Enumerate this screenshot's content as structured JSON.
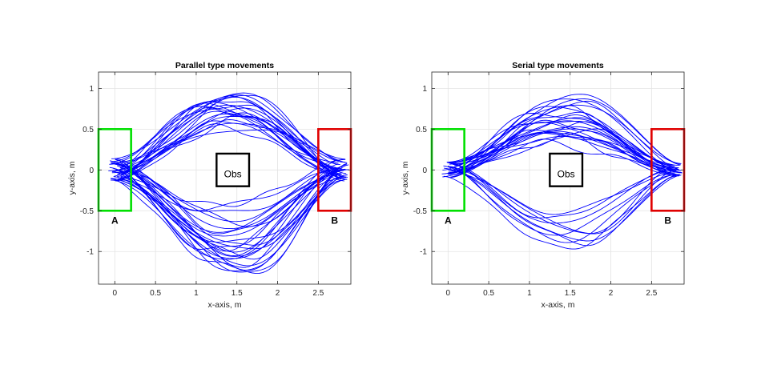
{
  "chart_data": [
    {
      "type": "line",
      "title": "Parallel type movements",
      "xlabel": "x-axis, m",
      "ylabel": "y-axis, m",
      "xlim": [
        -0.2,
        2.9
      ],
      "ylim": [
        -1.4,
        1.2
      ],
      "xticks": [
        0,
        0.5,
        1,
        1.5,
        2,
        2.5
      ],
      "xtick_labels": [
        "0",
        "0.5",
        "1",
        "1.5",
        "2",
        "2.5"
      ],
      "yticks": [
        -1,
        -0.5,
        0,
        0.5,
        1
      ],
      "ytick_labels": [
        "-1",
        "-0.5",
        "0",
        "0.5",
        "1"
      ],
      "grid": true,
      "line_color": "#0000ff",
      "regions": [
        {
          "label": "A",
          "x": [
            -0.2,
            0.2
          ],
          "y": [
            -0.5,
            0.5
          ],
          "color": "#00e000",
          "label_pos": [
            0,
            -0.62
          ]
        },
        {
          "label": "B",
          "x": [
            2.5,
            2.9
          ],
          "y": [
            -0.5,
            0.5
          ],
          "color": "#e00000",
          "label_pos": [
            2.7,
            -0.62
          ]
        },
        {
          "label": "Obs",
          "x": [
            1.25,
            1.65
          ],
          "y": [
            -0.2,
            0.2
          ],
          "color": "#000000",
          "label_pos": [
            1.45,
            -0.05
          ]
        }
      ],
      "trajectory_families": [
        {
          "count": 22,
          "mid_y_range": [
            0.45,
            1.02
          ],
          "start_spread": 0.14,
          "end_spread": 0.14,
          "peak_x_range": [
            1.1,
            1.75
          ]
        },
        {
          "count": 26,
          "mid_y_range": [
            -1.3,
            -0.5
          ],
          "start_spread": 0.14,
          "end_spread": 0.14,
          "peak_x_range": [
            1.1,
            1.75
          ]
        }
      ]
    },
    {
      "type": "line",
      "title": "Serial type movements",
      "xlabel": "x-axis, m",
      "ylabel": "y-axis, m",
      "xlim": [
        -0.2,
        2.9
      ],
      "ylim": [
        -1.4,
        1.2
      ],
      "xticks": [
        0,
        0.5,
        1,
        1.5,
        2,
        2.5
      ],
      "xtick_labels": [
        "0",
        "0.5",
        "1",
        "1.5",
        "2",
        "2.5"
      ],
      "yticks": [
        -1,
        -0.5,
        0,
        0.5,
        1
      ],
      "ytick_labels": [
        "-1",
        "-0.5",
        "0",
        "0.5",
        "1"
      ],
      "grid": true,
      "line_color": "#0000ff",
      "regions": [
        {
          "label": "A",
          "x": [
            -0.2,
            0.2
          ],
          "y": [
            -0.5,
            0.5
          ],
          "color": "#00e000",
          "label_pos": [
            0,
            -0.62
          ]
        },
        {
          "label": "B",
          "x": [
            2.5,
            2.9
          ],
          "y": [
            -0.5,
            0.5
          ],
          "color": "#e00000",
          "label_pos": [
            2.7,
            -0.62
          ]
        },
        {
          "label": "Obs",
          "x": [
            1.25,
            1.65
          ],
          "y": [
            -0.2,
            0.2
          ],
          "color": "#000000",
          "label_pos": [
            1.45,
            -0.05
          ]
        }
      ],
      "trajectory_families": [
        {
          "count": 26,
          "mid_y_range": [
            0.35,
            0.88
          ],
          "start_spread": 0.1,
          "end_spread": 0.08,
          "peak_x_range": [
            1.1,
            1.8
          ]
        },
        {
          "count": 10,
          "mid_y_range": [
            -0.9,
            -0.45
          ],
          "start_spread": 0.1,
          "end_spread": 0.08,
          "peak_x_range": [
            1.1,
            1.8
          ]
        }
      ]
    }
  ]
}
